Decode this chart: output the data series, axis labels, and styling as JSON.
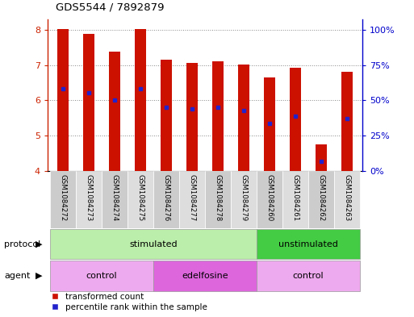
{
  "title": "GDS5544 / 7892879",
  "samples": [
    "GSM1084272",
    "GSM1084273",
    "GSM1084274",
    "GSM1084275",
    "GSM1084276",
    "GSM1084277",
    "GSM1084278",
    "GSM1084279",
    "GSM1084260",
    "GSM1084261",
    "GSM1084262",
    "GSM1084263"
  ],
  "bar_tops": [
    8.02,
    7.87,
    7.38,
    8.02,
    7.15,
    7.05,
    7.1,
    7.02,
    6.65,
    6.92,
    4.75,
    6.82
  ],
  "bar_bottoms": [
    4.0,
    4.0,
    4.0,
    4.0,
    4.0,
    4.0,
    4.0,
    4.0,
    4.0,
    4.0,
    4.0,
    4.0
  ],
  "percentile_y": [
    6.33,
    6.22,
    6.02,
    6.33,
    5.8,
    5.75,
    5.8,
    5.72,
    5.35,
    5.55,
    4.28,
    5.48
  ],
  "bar_color": "#cc1100",
  "dot_color": "#2222cc",
  "ylim": [
    4.0,
    8.3
  ],
  "yticks": [
    4,
    5,
    6,
    7,
    8
  ],
  "y2ticks_vals": [
    4.0,
    5.0,
    6.0,
    7.0,
    8.0
  ],
  "y2labels": [
    "0%",
    "25%",
    "50%",
    "75%",
    "100%"
  ],
  "bar_width": 0.45,
  "protocol_groups": [
    {
      "label": "stimulated",
      "start": 0,
      "end": 7,
      "color": "#bbeeaa"
    },
    {
      "label": "unstimulated",
      "start": 8,
      "end": 11,
      "color": "#44cc44"
    }
  ],
  "agent_groups": [
    {
      "label": "control",
      "start": 0,
      "end": 3,
      "color": "#eeaaee"
    },
    {
      "label": "edelfosine",
      "start": 4,
      "end": 7,
      "color": "#dd66dd"
    },
    {
      "label": "control",
      "start": 8,
      "end": 11,
      "color": "#eeaaee"
    }
  ],
  "legend_red": "transformed count",
  "legend_blue": "percentile rank within the sample",
  "protocol_label": "protocol",
  "agent_label": "agent",
  "bg_color": "#ffffff",
  "grid_color": "#888888",
  "axis_color_left": "#cc2200",
  "axis_color_right": "#0000cc",
  "sample_bg_even": "#cccccc",
  "sample_bg_odd": "#dddddd"
}
